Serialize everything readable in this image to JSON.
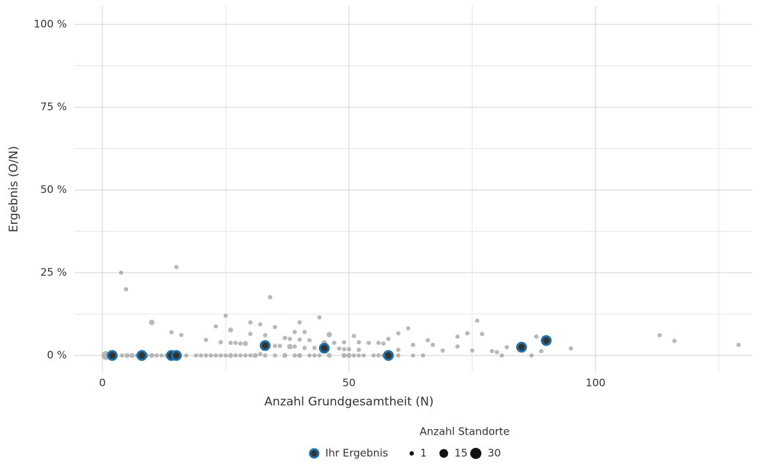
{
  "chart_data": {
    "type": "scatter",
    "x_label": "Anzahl Grundgesamtheit (N)",
    "y_label": "Ergebnis (O/N)",
    "xlim": [
      -5.65,
      131.8
    ],
    "ylim": [
      -5,
      105.7
    ],
    "xticks": [
      0,
      50,
      100
    ],
    "yticks": [
      {
        "value": 0,
        "label": "0 %"
      },
      {
        "value": 25,
        "label": "25 %"
      },
      {
        "value": 50,
        "label": "50 %"
      },
      {
        "value": 75,
        "label": "75 %"
      },
      {
        "value": 100,
        "label": "100 %"
      }
    ],
    "x_minor_ticks": [
      25,
      75,
      125
    ],
    "y_minor_ticks": [
      12.5,
      37.5,
      62.5,
      87.5
    ],
    "grid": true,
    "series": [
      {
        "color": "#a6a6a6",
        "x": [
          0.7,
          3.8,
          4.8,
          10,
          15,
          14,
          16,
          25,
          23,
          21,
          24,
          26,
          34,
          30,
          32,
          35,
          30,
          33,
          40,
          44,
          46,
          39,
          41,
          37,
          38,
          40,
          42,
          51,
          49,
          52,
          58,
          60,
          62,
          66,
          67,
          63,
          60,
          69,
          72,
          72,
          74,
          76,
          77,
          75,
          79,
          80,
          81,
          82,
          88,
          89,
          87,
          95,
          113,
          116,
          129,
          4,
          5,
          6,
          7,
          9,
          10,
          11,
          12,
          13,
          17,
          19,
          20,
          21,
          22,
          23,
          24,
          25,
          26,
          27,
          28,
          29,
          30,
          31,
          33,
          35,
          37,
          39,
          40,
          42,
          43,
          44,
          46,
          49,
          50,
          51,
          52,
          53,
          55,
          56,
          57,
          60,
          63,
          65,
          26,
          27,
          28,
          29,
          35,
          36,
          38,
          39,
          41,
          43,
          45,
          47,
          48,
          49,
          50,
          52,
          54,
          56,
          57,
          32
        ],
        "values": [
          0,
          25,
          20,
          10,
          26.7,
          7,
          6.2,
          12,
          8.8,
          4.7,
          4,
          7.7,
          17.6,
          10,
          9.4,
          8.6,
          6.5,
          6.1,
          10,
          11.5,
          6.3,
          7.1,
          7.1,
          5.3,
          5,
          4.8,
          4.6,
          5.9,
          4,
          4,
          5,
          6.7,
          8.2,
          4.6,
          3.2,
          3.2,
          1.7,
          1.5,
          2.7,
          5.7,
          6.7,
          10.5,
          6.5,
          1.5,
          1.3,
          1,
          0,
          2.5,
          5.7,
          1.3,
          0,
          2.1,
          6.1,
          4.4,
          3.2,
          0,
          0,
          0,
          0,
          0,
          0,
          0,
          0,
          0,
          0,
          0,
          0,
          0,
          0,
          0,
          0,
          0,
          0,
          0,
          0,
          0,
          0,
          0,
          0,
          0,
          0,
          0,
          0,
          0,
          0,
          0,
          0,
          0,
          0,
          0,
          0,
          0,
          0,
          0,
          0,
          0,
          0,
          0,
          3.8,
          3.8,
          3.6,
          3.6,
          2.9,
          2.9,
          2.7,
          2.7,
          2.3,
          2.3,
          3.8,
          3.8,
          2.1,
          1.9,
          1.9,
          1.7,
          3.8,
          3.8,
          3.6,
          0.4
        ],
        "sizes": [
          15,
          1,
          1,
          3,
          1,
          1,
          1,
          1,
          1,
          1,
          1,
          2,
          1,
          1,
          1,
          1,
          1,
          1,
          1,
          1,
          3,
          1,
          1,
          1,
          1,
          1,
          1,
          1,
          1,
          1,
          1,
          1,
          1,
          1,
          1,
          1,
          1,
          1,
          1,
          1,
          1,
          1,
          1,
          1,
          1,
          1,
          1,
          1,
          1,
          1,
          1,
          1,
          1,
          1,
          1,
          1,
          2,
          2,
          1,
          1,
          2,
          1,
          1,
          1,
          1,
          1,
          1,
          1,
          1,
          1,
          1,
          1,
          2,
          1,
          1,
          1,
          1,
          2,
          1,
          1,
          2,
          1,
          2,
          1,
          1,
          1,
          2,
          2,
          2,
          1,
          1,
          1,
          1,
          1,
          1,
          1,
          1,
          1,
          1,
          1,
          1,
          2,
          1,
          1,
          3,
          1,
          1,
          1,
          3,
          1,
          1,
          1,
          1,
          1,
          1,
          1,
          1,
          1
        ]
      },
      {
        "name": "Ihr Ergebnis",
        "color": "#1f6fa8",
        "x": [
          2,
          8,
          14,
          15,
          33,
          45,
          58,
          85,
          90
        ],
        "values": [
          0,
          0,
          0,
          0,
          3,
          2.2,
          0,
          2.5,
          4.5
        ],
        "sizes": [
          15,
          15,
          15,
          15,
          15,
          15,
          15,
          15,
          15
        ]
      }
    ],
    "size_legend_title": "Anzahl Standorte",
    "size_legend": [
      1,
      15,
      30
    ]
  }
}
